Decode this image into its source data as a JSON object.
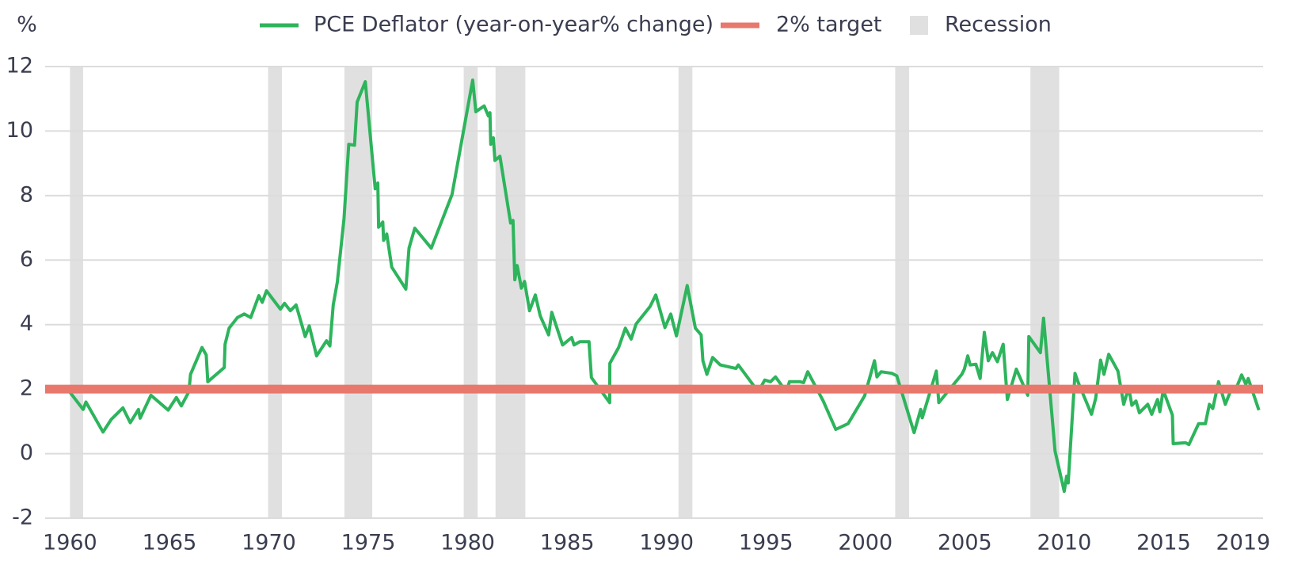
{
  "chart_data": {
    "type": "line",
    "y_axis_label": "%",
    "xlim": [
      1958.75,
      2020
    ],
    "ylim": [
      -2,
      12
    ],
    "xticks": [
      1960,
      1965,
      1970,
      1975,
      1980,
      1985,
      1990,
      1995,
      2000,
      2005,
      2010,
      2015,
      2019
    ],
    "yticks": [
      -2,
      0,
      2,
      4,
      6,
      8,
      10,
      12
    ],
    "grid": true,
    "series": [
      {
        "name": "PCE Deflator (year-on-year% change)",
        "color": "#2db45c",
        "x": [
          1960.0,
          1960.66,
          1960.8,
          1961.66,
          1962.07,
          1962.66,
          1963.03,
          1963.44,
          1963.53,
          1964.07,
          1964.94,
          1965.35,
          1965.6,
          1965.98,
          1966.06,
          1966.64,
          1966.85,
          1966.93,
          1967.76,
          1967.8,
          1968.0,
          1968.42,
          1968.76,
          1969.09,
          1969.5,
          1969.67,
          1969.88,
          1970.58,
          1970.79,
          1971.08,
          1971.37,
          1971.83,
          1972.03,
          1972.4,
          1972.9,
          1973.07,
          1973.24,
          1973.44,
          1973.78,
          1974.02,
          1974.31,
          1974.44,
          1974.85,
          1975.35,
          1975.48,
          1975.52,
          1975.73,
          1975.77,
          1975.93,
          1976.18,
          1976.89,
          1977.05,
          1977.34,
          1978.17,
          1979.21,
          1980.25,
          1980.41,
          1980.83,
          1981.04,
          1981.12,
          1981.16,
          1981.29,
          1981.37,
          1981.62,
          1982.16,
          1982.28,
          1982.37,
          1982.49,
          1982.7,
          1982.86,
          1983.11,
          1983.4,
          1983.65,
          1984.07,
          1984.23,
          1984.77,
          1985.23,
          1985.35,
          1985.64,
          1986.1,
          1986.22,
          1987.14,
          1987.15,
          1987.59,
          1987.93,
          1988.22,
          1988.47,
          1989.17,
          1989.46,
          1989.92,
          1990.21,
          1990.5,
          1991.04,
          1991.45,
          1991.74,
          1991.83,
          1992.03,
          1992.32,
          1992.7,
          1993.49,
          1993.61,
          1994.61,
          1994.94,
          1995.23,
          1995.48,
          1996.02,
          1996.18,
          1996.72,
          1996.89,
          1997.1,
          1997.88,
          1998.51,
          1999.13,
          1999.96,
          2000.46,
          2000.58,
          2000.79,
          2001.33,
          2001.58,
          2002.45,
          2002.78,
          2002.86,
          2003.57,
          2003.69,
          2004.85,
          2004.98,
          2005.15,
          2005.27,
          2005.56,
          2005.77,
          2005.98,
          2006.18,
          2006.39,
          2006.64,
          2006.93,
          2007.14,
          2007.59,
          2008.17,
          2008.22,
          2008.8,
          2008.96,
          2009.54,
          2010.0,
          2010.12,
          2010.2,
          2010.54,
          2010.71,
          2011.37,
          2011.58,
          2011.83,
          2012.0,
          2012.24,
          2012.7,
          2012.99,
          2013.24,
          2013.4,
          2013.61,
          2013.78,
          2014.2,
          2014.4,
          2014.69,
          2014.81,
          2014.98,
          2015.44,
          2015.48,
          2016.1,
          2016.27,
          2016.76,
          2017.1,
          2017.3,
          2017.47,
          2017.76,
          2018.1,
          2018.35,
          2018.63,
          2018.92,
          2019.13,
          2019.25,
          2019.79
        ],
        "values": [
          1.9,
          1.37,
          1.6,
          0.67,
          1.06,
          1.42,
          0.96,
          1.37,
          1.1,
          1.81,
          1.35,
          1.74,
          1.48,
          1.92,
          2.46,
          3.29,
          3.06,
          2.23,
          2.67,
          3.39,
          3.89,
          4.22,
          4.33,
          4.22,
          4.9,
          4.69,
          5.05,
          4.48,
          4.66,
          4.43,
          4.61,
          3.63,
          3.96,
          3.03,
          3.5,
          3.34,
          4.61,
          5.31,
          7.28,
          9.59,
          9.56,
          10.9,
          11.53,
          8.21,
          8.39,
          7.02,
          7.18,
          6.61,
          6.81,
          5.78,
          5.1,
          6.37,
          6.99,
          6.37,
          8.03,
          11.58,
          10.6,
          10.78,
          10.47,
          10.57,
          9.59,
          9.79,
          9.09,
          9.22,
          7.15,
          7.23,
          5.39,
          5.83,
          5.13,
          5.34,
          4.43,
          4.92,
          4.27,
          3.68,
          4.38,
          3.37,
          3.6,
          3.37,
          3.47,
          3.47,
          2.36,
          1.58,
          2.8,
          3.29,
          3.89,
          3.55,
          4.02,
          4.56,
          4.92,
          3.91,
          4.33,
          3.65,
          5.21,
          3.89,
          3.68,
          2.88,
          2.46,
          2.98,
          2.75,
          2.64,
          2.75,
          1.92,
          2.28,
          2.23,
          2.38,
          1.92,
          2.23,
          2.23,
          2.2,
          2.54,
          1.63,
          0.75,
          0.93,
          1.79,
          2.88,
          2.38,
          2.54,
          2.49,
          2.41,
          0.65,
          1.37,
          1.11,
          2.56,
          1.58,
          2.46,
          2.62,
          3.03,
          2.75,
          2.77,
          2.33,
          3.76,
          2.88,
          3.13,
          2.85,
          3.39,
          1.68,
          2.62,
          1.81,
          3.63,
          3.13,
          4.2,
          0.08,
          -1.17,
          -0.7,
          -0.91,
          2.49,
          2.2,
          1.22,
          1.71,
          2.9,
          2.46,
          3.08,
          2.56,
          1.53,
          2.05,
          1.5,
          1.63,
          1.27,
          1.53,
          1.22,
          1.68,
          1.3,
          1.97,
          1.19,
          0.31,
          0.34,
          0.28,
          0.93,
          0.93,
          1.53,
          1.4,
          2.23,
          1.53,
          1.92,
          2.0,
          2.44,
          2.15,
          2.33,
          1.35
        ]
      }
    ],
    "target": {
      "name": "2% target",
      "color": "#e8776c",
      "value": 2
    },
    "recessions": {
      "name": "Recession",
      "color": "#e0e0e0",
      "periods": [
        [
          1960.0,
          1960.66
        ],
        [
          1969.96,
          1970.66
        ],
        [
          1973.8,
          1975.2
        ],
        [
          1979.8,
          1980.5
        ],
        [
          1981.4,
          1982.9
        ],
        [
          1990.6,
          1991.3
        ],
        [
          2001.5,
          2002.2
        ],
        [
          2008.3,
          2009.75
        ]
      ]
    }
  }
}
